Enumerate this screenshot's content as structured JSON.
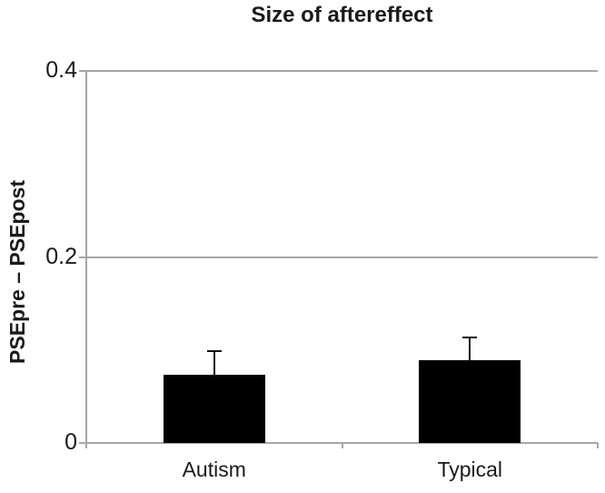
{
  "chart_data": {
    "type": "bar",
    "title": "Size of aftereffect",
    "ylabel": "PSEpre – PSEpost",
    "categories": [
      "Autism",
      "Typical"
    ],
    "values": [
      0.073,
      0.089
    ],
    "errors_upper": [
      0.026,
      0.024
    ],
    "ylim": [
      0,
      0.4
    ],
    "yticks": [
      0,
      0.2,
      0.4
    ],
    "ytick_labels": [
      "0",
      "0.2",
      "0.4"
    ],
    "grid": true,
    "legend": "none",
    "bar_color": "#000000",
    "error_bar_color": "#111111",
    "axis_color": "#a6a6a6",
    "text_color": "#1a1a1a",
    "background_color": "#ffffff"
  }
}
